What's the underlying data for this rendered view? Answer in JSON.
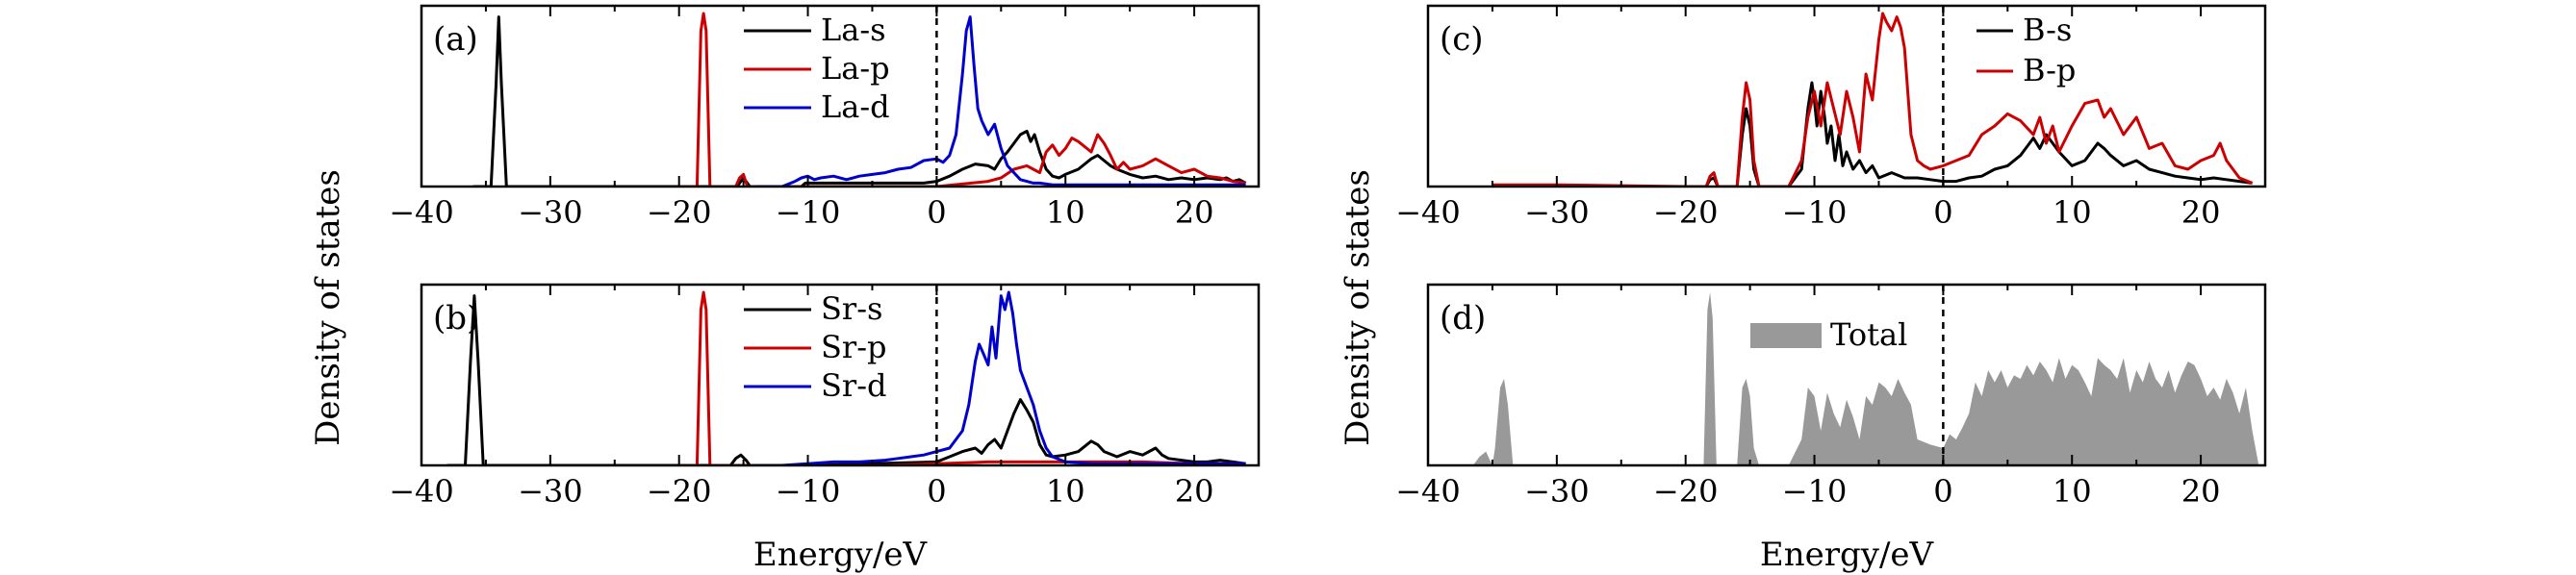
{
  "figure": {
    "ylabel": "Density of states",
    "xlabel": "Energy/eV"
  },
  "chart_data": [
    {
      "id": "a",
      "panel_label": "(a)",
      "type": "line",
      "xlim": [
        -40,
        25
      ],
      "ylim": [
        0,
        1
      ],
      "xticks": [
        -40,
        -30,
        -20,
        -10,
        0,
        10,
        20
      ],
      "show_xlabel": false,
      "show_ylabel": true,
      "fermi_level": 0,
      "legend_position": "top-center",
      "series": [
        {
          "name": "La-s",
          "color": "#000000",
          "x": [
            -36,
            -34.6,
            -34.2,
            -34.0,
            -33.8,
            -33.4,
            -20,
            -16,
            -15.5,
            -15.2,
            -15.0,
            -14.8,
            -14.5,
            -12,
            -10.5,
            -10.2,
            -10,
            -9.5,
            -8,
            -6,
            -5,
            -4,
            -3,
            -2,
            -1,
            0,
            1,
            2,
            3,
            4,
            4.5,
            5,
            5.5,
            6,
            6.5,
            7,
            7.3,
            7.6,
            8,
            8.5,
            9,
            9.5,
            10,
            11,
            12,
            12.5,
            13,
            13.5,
            14,
            15,
            16,
            17,
            18,
            19,
            20,
            21,
            22,
            22.5,
            23,
            23.5,
            24
          ],
          "y": [
            0,
            0,
            0.6,
            0.98,
            0.6,
            0,
            0,
            0,
            0,
            0.03,
            0.05,
            0.03,
            0,
            0,
            0,
            0.02,
            0.02,
            0.02,
            0.02,
            0.02,
            0.02,
            0.02,
            0.02,
            0.02,
            0.02,
            0.03,
            0.06,
            0.1,
            0.13,
            0.12,
            0.1,
            0.16,
            0.2,
            0.25,
            0.3,
            0.32,
            0.26,
            0.3,
            0.2,
            0.1,
            0.06,
            0.05,
            0.07,
            0.1,
            0.16,
            0.18,
            0.15,
            0.12,
            0.1,
            0.07,
            0.05,
            0.06,
            0.04,
            0.05,
            0.04,
            0.05,
            0.04,
            0.05,
            0.03,
            0.04,
            0.02
          ]
        },
        {
          "name": "La-p",
          "color": "#cc0000",
          "x": [
            -20,
            -18.6,
            -18.3,
            -18.1,
            -17.9,
            -17.6,
            -16,
            -15.6,
            -15.3,
            -15.0,
            -14.7,
            -12,
            -10,
            -5,
            0,
            4,
            5,
            6,
            7,
            7.5,
            8,
            8.5,
            9,
            9.5,
            10,
            10.5,
            11,
            12,
            12.5,
            13,
            13.5,
            14,
            14.5,
            15,
            16,
            17,
            18,
            19,
            20,
            21,
            22,
            23,
            24
          ],
          "y": [
            0,
            0,
            0.9,
            1.0,
            0.9,
            0,
            0,
            0,
            0.05,
            0.07,
            0,
            0,
            0,
            0,
            0,
            0.03,
            0.05,
            0.1,
            0.12,
            0.1,
            0.08,
            0.2,
            0.24,
            0.18,
            0.22,
            0.28,
            0.26,
            0.2,
            0.3,
            0.25,
            0.18,
            0.1,
            0.14,
            0.1,
            0.12,
            0.16,
            0.12,
            0.08,
            0.1,
            0.06,
            0.05,
            0.03,
            0.02
          ]
        },
        {
          "name": "La-d",
          "color": "#0000cc",
          "x": [
            -14,
            -12,
            -11,
            -10.5,
            -10,
            -9.5,
            -9,
            -8,
            -7,
            -6,
            -5,
            -4,
            -3,
            -2,
            -1,
            0,
            0.5,
            1,
            1.5,
            2,
            2.3,
            2.6,
            2.9,
            3.2,
            3.5,
            4,
            4.5,
            5,
            5.5,
            6,
            6.5,
            7,
            7.5,
            8,
            9,
            10,
            12,
            15,
            18,
            20,
            24
          ],
          "y": [
            0,
            0,
            0.03,
            0.05,
            0.06,
            0.04,
            0.05,
            0.06,
            0.04,
            0.06,
            0.07,
            0.08,
            0.1,
            0.11,
            0.15,
            0.16,
            0.14,
            0.18,
            0.3,
            0.65,
            0.9,
            0.98,
            0.7,
            0.45,
            0.38,
            0.3,
            0.36,
            0.22,
            0.12,
            0.08,
            0.04,
            0.03,
            0.02,
            0.02,
            0.01,
            0.01,
            0.01,
            0.01,
            0.01,
            0.01,
            0.01
          ]
        }
      ]
    },
    {
      "id": "b",
      "panel_label": "(b)",
      "type": "line",
      "xlim": [
        -40,
        25
      ],
      "ylim": [
        0,
        1
      ],
      "xticks": [
        -40,
        -30,
        -20,
        -10,
        0,
        10,
        20
      ],
      "show_xlabel": true,
      "show_ylabel": false,
      "fermi_level": 0,
      "legend_position": "top-center",
      "series": [
        {
          "name": "Sr-s",
          "color": "#000000",
          "x": [
            -38,
            -36.6,
            -36.2,
            -35.9,
            -35.6,
            -35.2,
            -20,
            -16,
            -15.6,
            -15.2,
            -14.8,
            -14.5,
            -12,
            -10,
            0,
            1,
            2,
            3,
            3.5,
            4,
            4.5,
            5,
            5.5,
            6,
            6.5,
            7,
            7.5,
            8,
            8.5,
            9,
            10,
            11,
            12,
            12.5,
            13,
            14,
            15,
            16,
            17,
            17.5,
            18,
            19,
            20,
            21,
            22,
            23,
            24
          ],
          "y": [
            0,
            0,
            0.6,
            0.98,
            0.6,
            0,
            0,
            0,
            0.04,
            0.06,
            0.03,
            0,
            0,
            0,
            0.02,
            0.05,
            0.08,
            0.1,
            0.07,
            0.12,
            0.15,
            0.1,
            0.2,
            0.3,
            0.38,
            0.32,
            0.25,
            0.12,
            0.06,
            0.05,
            0.06,
            0.08,
            0.14,
            0.12,
            0.08,
            0.05,
            0.08,
            0.06,
            0.1,
            0.06,
            0.04,
            0.03,
            0.02,
            0.02,
            0.03,
            0.02,
            0.01
          ]
        },
        {
          "name": "Sr-p",
          "color": "#cc0000",
          "x": [
            -20,
            -18.6,
            -18.3,
            -18.1,
            -17.9,
            -17.6,
            -16,
            -12,
            -8,
            -4,
            0,
            4,
            8,
            12,
            16,
            20,
            24
          ],
          "y": [
            0,
            0,
            0.9,
            1.0,
            0.9,
            0,
            0,
            0,
            0,
            0,
            0.01,
            0.02,
            0.02,
            0.02,
            0.02,
            0.01,
            0.01
          ]
        },
        {
          "name": "Sr-d",
          "color": "#0000cc",
          "x": [
            -14,
            -12,
            -10,
            -8,
            -6,
            -4,
            -3,
            -2,
            -1,
            0,
            1,
            2,
            2.5,
            3,
            3.3,
            3.6,
            4,
            4.3,
            4.6,
            5,
            5.3,
            5.6,
            5.9,
            6.2,
            6.5,
            7,
            7.5,
            8,
            8.5,
            9,
            10,
            12,
            15,
            18,
            20,
            24
          ],
          "y": [
            0,
            0,
            0.01,
            0.02,
            0.02,
            0.03,
            0.04,
            0.05,
            0.06,
            0.08,
            0.1,
            0.2,
            0.35,
            0.6,
            0.7,
            0.65,
            0.58,
            0.8,
            0.62,
            0.98,
            0.9,
            1.0,
            0.88,
            0.7,
            0.55,
            0.45,
            0.35,
            0.2,
            0.1,
            0.05,
            0.02,
            0.01,
            0.01,
            0.01,
            0.01,
            0.01
          ]
        }
      ]
    },
    {
      "id": "c",
      "panel_label": "(c)",
      "type": "line",
      "xlim": [
        -40,
        25
      ],
      "ylim": [
        0,
        1
      ],
      "xticks": [
        -40,
        -30,
        -20,
        -10,
        0,
        10,
        20
      ],
      "show_xlabel": false,
      "show_ylabel": true,
      "fermi_level": 0,
      "legend_position": "top-center",
      "series": [
        {
          "name": "B-s",
          "color": "#000000",
          "x": [
            -20,
            -18.4,
            -18.1,
            -17.8,
            -17.5,
            -16,
            -15.6,
            -15.3,
            -15.0,
            -14.7,
            -14.3,
            -12,
            -11,
            -10.5,
            -10.2,
            -10,
            -9.8,
            -9.5,
            -9.2,
            -9,
            -8.7,
            -8.4,
            -8.1,
            -7.8,
            -7.5,
            -7,
            -6.5,
            -6,
            -5.5,
            -5,
            -4,
            -3,
            -2,
            -1,
            0,
            1,
            2,
            3,
            4,
            5,
            6,
            7,
            7.5,
            8,
            8.5,
            9,
            10,
            11,
            12,
            12.5,
            13,
            14,
            15,
            16,
            17,
            18,
            19,
            20,
            21,
            22,
            23,
            24
          ],
          "y": [
            0,
            0,
            0.04,
            0.05,
            0,
            0,
            0.3,
            0.45,
            0.35,
            0.1,
            0,
            0,
            0.1,
            0.45,
            0.6,
            0.5,
            0.35,
            0.55,
            0.4,
            0.25,
            0.35,
            0.15,
            0.3,
            0.12,
            0.2,
            0.1,
            0.15,
            0.08,
            0.12,
            0.05,
            0.08,
            0.05,
            0.05,
            0.04,
            0.03,
            0.03,
            0.05,
            0.06,
            0.1,
            0.12,
            0.18,
            0.28,
            0.22,
            0.3,
            0.25,
            0.2,
            0.12,
            0.15,
            0.25,
            0.22,
            0.18,
            0.12,
            0.15,
            0.1,
            0.08,
            0.06,
            0.05,
            0.04,
            0.05,
            0.04,
            0.03,
            0.02
          ]
        },
        {
          "name": "B-p",
          "color": "#cc0000",
          "x": [
            -35,
            -30,
            -20,
            -18.4,
            -18.1,
            -17.8,
            -17.5,
            -16,
            -15.6,
            -15.3,
            -15.0,
            -14.7,
            -14.3,
            -12,
            -11,
            -10.5,
            -10,
            -9.5,
            -9,
            -8.5,
            -8,
            -7.5,
            -7,
            -6.5,
            -6,
            -5.5,
            -5,
            -4.7,
            -4.4,
            -4,
            -3.6,
            -3.3,
            -3,
            -2.5,
            -2,
            -1.5,
            -1,
            0,
            1,
            2,
            3,
            4,
            5,
            6,
            7,
            7.5,
            8,
            8.5,
            9,
            10,
            11,
            12,
            12.5,
            13,
            14,
            15,
            16,
            17,
            18,
            19,
            20,
            21,
            21.5,
            22,
            23,
            24
          ],
          "y": [
            0.01,
            0.01,
            0,
            0,
            0.06,
            0.08,
            0,
            0,
            0.4,
            0.6,
            0.5,
            0.15,
            0,
            0,
            0.15,
            0.4,
            0.55,
            0.35,
            0.6,
            0.45,
            0.3,
            0.55,
            0.4,
            0.2,
            0.65,
            0.5,
            0.85,
            1.0,
            0.95,
            0.9,
            0.98,
            0.92,
            0.8,
            0.3,
            0.15,
            0.12,
            0.1,
            0.12,
            0.15,
            0.18,
            0.3,
            0.35,
            0.42,
            0.38,
            0.3,
            0.4,
            0.25,
            0.35,
            0.2,
            0.35,
            0.48,
            0.5,
            0.4,
            0.45,
            0.3,
            0.4,
            0.22,
            0.25,
            0.12,
            0.1,
            0.15,
            0.18,
            0.25,
            0.15,
            0.05,
            0.02
          ]
        }
      ]
    },
    {
      "id": "d",
      "panel_label": "(d)",
      "type": "area",
      "xlim": [
        -40,
        25
      ],
      "ylim": [
        0,
        1
      ],
      "xticks": [
        -40,
        -30,
        -20,
        -10,
        0,
        10,
        20
      ],
      "show_xlabel": true,
      "show_ylabel": false,
      "fermi_level": 0,
      "legend_position": "top-center",
      "series": [
        {
          "name": "Total",
          "color": "#999999",
          "x": [
            -40,
            -36.5,
            -36,
            -35.5,
            -35,
            -34.8,
            -34.4,
            -34.1,
            -33.8,
            -33.4,
            -33,
            -20,
            -18.6,
            -18.3,
            -18.1,
            -17.9,
            -17.6,
            -16,
            -15.6,
            -15.3,
            -15.0,
            -14.7,
            -14.3,
            -12,
            -11,
            -10.5,
            -10,
            -9.5,
            -9,
            -8.5,
            -8,
            -7.5,
            -7,
            -6.5,
            -6,
            -5.5,
            -5,
            -4.5,
            -4,
            -3.5,
            -3,
            -2.5,
            -2,
            -1,
            0,
            0.5,
            1,
            1.5,
            2,
            2.5,
            3,
            3.5,
            4,
            4.5,
            5,
            5.5,
            6,
            6.5,
            7,
            7.5,
            8,
            8.5,
            9,
            9.5,
            10,
            10.5,
            11,
            11.5,
            12,
            12.5,
            13,
            13.5,
            14,
            14.5,
            15,
            15.5,
            16,
            16.5,
            17,
            17.5,
            18,
            18.5,
            19,
            19.5,
            20,
            20.5,
            21,
            21.5,
            22,
            22.5,
            23,
            23.5,
            24,
            24.5
          ],
          "y": [
            0,
            0,
            0.05,
            0.08,
            0,
            0.1,
            0.45,
            0.5,
            0.35,
            0,
            0,
            0,
            0,
            0.9,
            1.0,
            0.85,
            0,
            0,
            0.45,
            0.5,
            0.4,
            0.1,
            0,
            0,
            0.15,
            0.45,
            0.4,
            0.2,
            0.42,
            0.3,
            0.22,
            0.38,
            0.28,
            0.15,
            0.4,
            0.35,
            0.48,
            0.45,
            0.4,
            0.5,
            0.42,
            0.35,
            0.15,
            0.12,
            0.1,
            0.18,
            0.15,
            0.22,
            0.3,
            0.48,
            0.4,
            0.55,
            0.48,
            0.55,
            0.45,
            0.52,
            0.5,
            0.58,
            0.52,
            0.6,
            0.55,
            0.48,
            0.62,
            0.5,
            0.58,
            0.55,
            0.48,
            0.4,
            0.62,
            0.58,
            0.55,
            0.5,
            0.62,
            0.42,
            0.55,
            0.48,
            0.6,
            0.5,
            0.45,
            0.55,
            0.42,
            0.52,
            0.6,
            0.58,
            0.5,
            0.4,
            0.45,
            0.38,
            0.5,
            0.42,
            0.3,
            0.45,
            0.2,
            0
          ]
        }
      ]
    }
  ]
}
